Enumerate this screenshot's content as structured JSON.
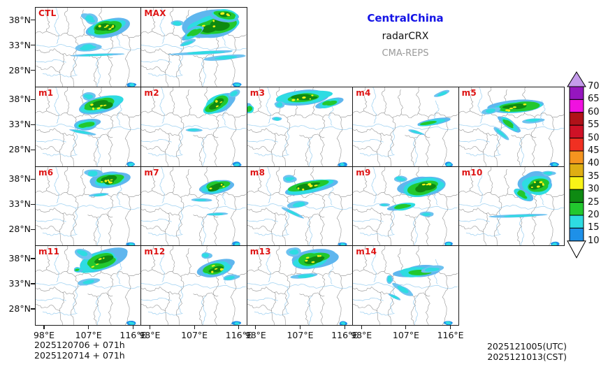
{
  "title": {
    "region": "CentralChina",
    "variable": "radarCRX",
    "model": "CMA-REPS"
  },
  "axes": {
    "lat_ticks": [
      "38°N",
      "33°N",
      "28°N"
    ],
    "lon_ticks": [
      "98°E",
      "107°E",
      "116°E"
    ]
  },
  "footer": {
    "left_lines": [
      "2025120706 + 071h",
      "2025120714 + 071h"
    ],
    "right_lines": [
      "2025121005(UTC)",
      "2025121013(CST)"
    ]
  },
  "colorbar": {
    "tick_labels": [
      "70",
      "65",
      "60",
      "55",
      "50",
      "45",
      "40",
      "35",
      "30",
      "25",
      "20",
      "15",
      "10"
    ],
    "segment_colors_top_to_bottom": [
      "#9516be",
      "#f011e0",
      "#b01219",
      "#ce1126",
      "#f03022",
      "#f5941f",
      "#dfae13",
      "#f8f317",
      "#0e8a12",
      "#22c82e",
      "#2edce2",
      "#1e90e8"
    ],
    "arrow_top_color": "#c49bea",
    "arrow_bottom_color": "#ffffff"
  },
  "map_colors": {
    "panel_label_red": "#de1414",
    "border_gray": "#8a8a8a",
    "river_blue": "#a5d4f2",
    "echo_blue": "#5fb6ee",
    "echo_cyan": "#2edce2",
    "echo_green": "#22c82e",
    "echo_dark_green": "#0e8a12",
    "echo_yellow": "#f8f317"
  },
  "grid": {
    "rows": [
      2,
      5,
      5,
      4
    ],
    "lon_labeled_columns": [
      0,
      1,
      2,
      3
    ]
  },
  "panels": [
    {
      "label": "CTL",
      "echoes": [
        [
          68,
          25,
          20,
          11,
          -15,
          3
        ],
        [
          52,
          14,
          8,
          6,
          20,
          1
        ],
        [
          50,
          50,
          12,
          5,
          -5,
          1
        ],
        [
          57,
          60,
          24,
          1.6,
          -2,
          1
        ],
        [
          91,
          98,
          4,
          3,
          0,
          0
        ]
      ]
    },
    {
      "label": "MAX",
      "echoes": [
        [
          70,
          22,
          26,
          16,
          -10,
          3
        ],
        [
          79,
          9,
          14,
          8,
          10,
          3
        ],
        [
          50,
          32,
          12,
          6,
          -30,
          2
        ],
        [
          44,
          45,
          8,
          3,
          -20,
          1
        ],
        [
          60,
          57,
          28,
          2,
          -3,
          1
        ],
        [
          80,
          63,
          17,
          3,
          -5,
          1
        ],
        [
          35,
          20,
          6,
          4,
          0,
          1
        ],
        [
          91,
          98,
          4,
          3,
          0,
          0
        ]
      ]
    },
    {
      "label": "m1",
      "echoes": [
        [
          63,
          22,
          21,
          11,
          -12,
          3
        ],
        [
          50,
          11,
          6,
          5,
          0,
          1
        ],
        [
          48,
          47,
          12,
          6,
          -8,
          2
        ],
        [
          45,
          57,
          13,
          2,
          10,
          1
        ],
        [
          91,
          98,
          4,
          3,
          0,
          0
        ]
      ]
    },
    {
      "label": "m2",
      "echoes": [
        [
          73,
          20,
          16,
          11,
          -25,
          3
        ],
        [
          88,
          8,
          6,
          4,
          -30,
          1
        ],
        [
          50,
          54,
          8,
          2,
          0,
          1
        ],
        [
          91,
          98,
          4,
          3,
          0,
          0
        ]
      ]
    },
    {
      "label": "m3",
      "echoes": [
        [
          55,
          12,
          26,
          9,
          -5,
          3
        ],
        [
          78,
          20,
          12,
          5,
          -15,
          2
        ],
        [
          30,
          22,
          5,
          4,
          0,
          1
        ],
        [
          28,
          40,
          5,
          3,
          0,
          1
        ],
        [
          2,
          27,
          5,
          6,
          0,
          2
        ],
        [
          91,
          98,
          4,
          3,
          0,
          0
        ]
      ]
    },
    {
      "label": "m4",
      "echoes": [
        [
          74,
          45,
          15,
          4,
          -10,
          2
        ],
        [
          60,
          57,
          8,
          2,
          15,
          1
        ],
        [
          85,
          8,
          7,
          3,
          -20,
          1
        ],
        [
          91,
          98,
          4,
          3,
          0,
          0
        ]
      ]
    },
    {
      "label": "m5",
      "echoes": [
        [
          57,
          25,
          28,
          9,
          -4,
          3
        ],
        [
          30,
          30,
          8,
          4,
          -10,
          1
        ],
        [
          48,
          47,
          12,
          5,
          35,
          2
        ],
        [
          40,
          58,
          9,
          3,
          40,
          1
        ],
        [
          70,
          42,
          10,
          3,
          -5,
          1
        ],
        [
          91,
          98,
          4,
          3,
          0,
          0
        ]
      ]
    },
    {
      "label": "m6",
      "echoes": [
        [
          70,
          17,
          18,
          11,
          -10,
          3
        ],
        [
          55,
          8,
          7,
          5,
          0,
          1
        ],
        [
          62,
          35,
          10,
          2,
          -5,
          1
        ],
        [
          91,
          98,
          4,
          3,
          0,
          0
        ]
      ]
    },
    {
      "label": "m7",
      "echoes": [
        [
          72,
          25,
          16,
          9,
          -12,
          3
        ],
        [
          58,
          42,
          9,
          2,
          0,
          1
        ],
        [
          72,
          60,
          10,
          2,
          -3,
          1
        ],
        [
          91,
          98,
          4,
          3,
          0,
          0
        ]
      ]
    },
    {
      "label": "m8",
      "echoes": [
        [
          58,
          25,
          24,
          8,
          -12,
          3
        ],
        [
          40,
          15,
          6,
          4,
          0,
          1
        ],
        [
          48,
          48,
          10,
          4,
          -10,
          1
        ],
        [
          43,
          58,
          11,
          2,
          25,
          1
        ],
        [
          91,
          98,
          4,
          3,
          0,
          0
        ]
      ]
    },
    {
      "label": "m9",
      "echoes": [
        [
          67,
          25,
          21,
          12,
          -8,
          3
        ],
        [
          45,
          15,
          6,
          4,
          0,
          1
        ],
        [
          48,
          50,
          13,
          5,
          -8,
          2
        ],
        [
          70,
          60,
          7,
          3,
          0,
          1
        ],
        [
          30,
          48,
          5,
          2,
          0,
          1
        ],
        [
          91,
          98,
          4,
          3,
          0,
          0
        ]
      ]
    },
    {
      "label": "m10",
      "echoes": [
        [
          74,
          22,
          15,
          13,
          -5,
          3
        ],
        [
          60,
          35,
          10,
          6,
          30,
          2
        ],
        [
          55,
          62,
          26,
          1.6,
          -2,
          1
        ],
        [
          85,
          8,
          6,
          3,
          0,
          1
        ],
        [
          91,
          98,
          4,
          3,
          0,
          0
        ]
      ]
    },
    {
      "label": "m11",
      "echoes": [
        [
          62,
          20,
          23,
          12,
          -18,
          3
        ],
        [
          45,
          10,
          8,
          6,
          20,
          1
        ],
        [
          50,
          45,
          10,
          4,
          -10,
          1
        ],
        [
          40,
          30,
          4,
          3,
          0,
          2
        ],
        [
          91,
          98,
          4,
          3,
          0,
          0
        ]
      ]
    },
    {
      "label": "m12",
      "echoes": [
        [
          72,
          28,
          17,
          10,
          -15,
          3
        ],
        [
          62,
          12,
          5,
          4,
          0,
          1
        ],
        [
          85,
          40,
          8,
          3,
          -10,
          1
        ],
        [
          91,
          98,
          4,
          3,
          0,
          0
        ]
      ]
    },
    {
      "label": "m13",
      "echoes": [
        [
          63,
          17,
          21,
          12,
          -8,
          3
        ],
        [
          45,
          8,
          7,
          5,
          0,
          1
        ],
        [
          55,
          38,
          12,
          3,
          -5,
          1
        ],
        [
          91,
          98,
          4,
          3,
          0,
          0
        ]
      ]
    },
    {
      "label": "m14",
      "echoes": [
        [
          62,
          33,
          20,
          7,
          -4,
          2
        ],
        [
          75,
          30,
          10,
          4,
          -8,
          1
        ],
        [
          48,
          55,
          10,
          4,
          30,
          1
        ],
        [
          40,
          65,
          6,
          2,
          25,
          1
        ],
        [
          35,
          42,
          3,
          5,
          0,
          1
        ],
        [
          91,
          98,
          4,
          3,
          0,
          0
        ]
      ]
    }
  ]
}
